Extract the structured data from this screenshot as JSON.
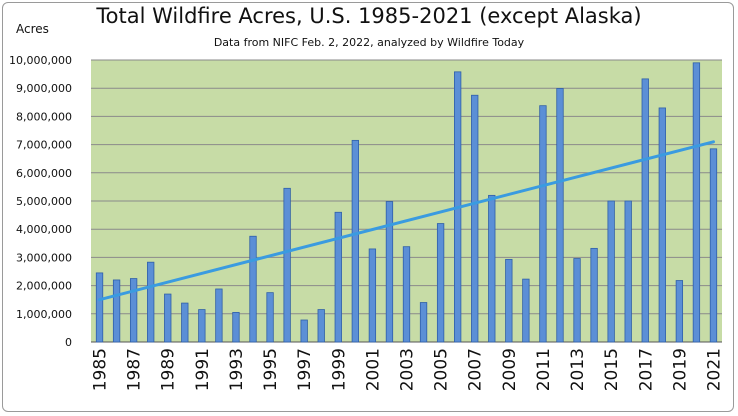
{
  "chart_data": {
    "type": "bar",
    "title": "Total Wildfire Acres, U.S. 1985-2021 (except Alaska)",
    "subtitle": "Data from NIFC Feb. 2, 2022, analyzed by Wildfire Today",
    "ylabel": "Acres",
    "xlabel": "",
    "ylim": [
      0,
      10000000
    ],
    "y_ticks": [
      "0",
      "1,000,000",
      "2,000,000",
      "3,000,000",
      "4,000,000",
      "5,000,000",
      "6,000,000",
      "7,000,000",
      "8,000,000",
      "9,000,000",
      "10,000,000"
    ],
    "x_tick_labels": [
      "1985",
      "1987",
      "1989",
      "1991",
      "1993",
      "1995",
      "1997",
      "1999",
      "2001",
      "2003",
      "2005",
      "2007",
      "2009",
      "2011",
      "2013",
      "2015",
      "2017",
      "2019",
      "2021"
    ],
    "categories": [
      "1985",
      "1986",
      "1987",
      "1988",
      "1989",
      "1990",
      "1991",
      "1992",
      "1993",
      "1994",
      "1995",
      "1996",
      "1997",
      "1998",
      "1999",
      "2000",
      "2001",
      "2002",
      "2003",
      "2004",
      "2005",
      "2006",
      "2007",
      "2008",
      "2009",
      "2010",
      "2011",
      "2012",
      "2013",
      "2014",
      "2015",
      "2016",
      "2017",
      "2018",
      "2019",
      "2020",
      "2021"
    ],
    "values": [
      2450000,
      2200000,
      2250000,
      2830000,
      1700000,
      1380000,
      1150000,
      1880000,
      1050000,
      3750000,
      1750000,
      5450000,
      780000,
      1150000,
      4600000,
      7150000,
      3300000,
      4980000,
      3380000,
      1400000,
      4200000,
      9580000,
      8750000,
      5200000,
      2930000,
      2230000,
      8380000,
      8990000,
      2960000,
      3320000,
      5000000,
      5000000,
      9330000,
      8300000,
      2180000,
      9900000,
      6850000
    ],
    "trendline": {
      "start": 1500000,
      "end": 7100000
    },
    "grid": true,
    "colors": {
      "plot_background": "#c7dca6",
      "bar_fill": "#5b8fd6",
      "bar_edge": "#2f5fa8",
      "trendline": "#3a9be0",
      "gridline": "#8a8a8a"
    }
  }
}
